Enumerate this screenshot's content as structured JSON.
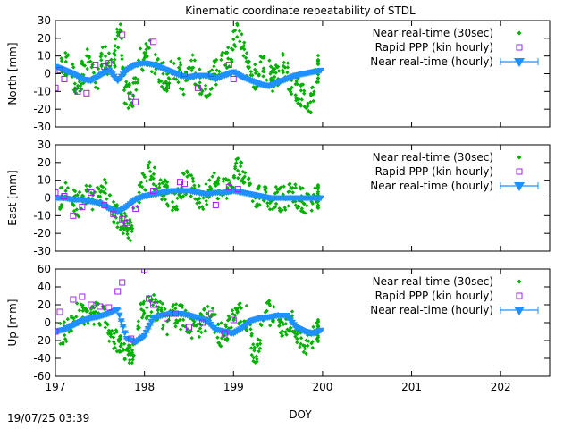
{
  "title": "Kinematic coordinate repeatability of STDL",
  "timestamp": "19/07/25 03:39",
  "colors": {
    "nrt_30sec": "#00b000",
    "rapid_ppp": "#a020f0",
    "nrt_hourly": "#1e90ff"
  },
  "chart_data": {
    "type": "scatter",
    "title": "Kinematic coordinate repeatability of STDL",
    "xlabel": "DOY",
    "xlim": [
      197,
      202.55
    ],
    "xticks": [
      197,
      198,
      199,
      200,
      201,
      202
    ],
    "grid": false,
    "legend_position": "top-right",
    "legend": [
      {
        "label": "Near real-time (30sec)",
        "marker": "diamond",
        "color": "#00b000"
      },
      {
        "label": "Rapid PPP (kin hourly)",
        "marker": "open-square",
        "color": "#a020f0"
      },
      {
        "label": "Near real-time (hourly)",
        "marker": "triangle-down-errorbar",
        "color": "#1e90ff"
      }
    ],
    "panels": [
      {
        "name": "north",
        "ylabel": "North [mm]",
        "ylim": [
          -30,
          30
        ],
        "yticks": [
          -30,
          -20,
          -10,
          0,
          10,
          20,
          30
        ],
        "series": [
          {
            "name": "Near real-time (30sec)",
            "color": "#00b000",
            "x": [
              197.05,
              197.15,
              197.25,
              197.35,
              197.45,
              197.55,
              197.65,
              197.72,
              197.78,
              197.85,
              197.95,
              198.05,
              198.15,
              198.25,
              198.35,
              198.45,
              198.55,
              198.65,
              198.75,
              198.85,
              198.95,
              199.05,
              199.15,
              199.25,
              199.35,
              199.45,
              199.55,
              199.65,
              199.75,
              199.85,
              199.95
            ],
            "y": [
              2,
              5,
              -8,
              8,
              -5,
              10,
              3,
              28,
              -10,
              -15,
              6,
              12,
              3,
              -4,
              5,
              -6,
              4,
              -8,
              -3,
              5,
              7,
              25,
              4,
              -2,
              6,
              -3,
              5,
              -5,
              -10,
              -18,
              3
            ],
            "spread": 8
          },
          {
            "name": "Rapid PPP (kin hourly)",
            "color": "#a020f0",
            "x": [
              197.0,
              197.05,
              197.1,
              197.25,
              197.35,
              197.45,
              197.55,
              197.6,
              197.75,
              197.85,
              197.9,
              198.1,
              198.25,
              198.45,
              198.6,
              198.75,
              198.95,
              199.0
            ],
            "y": [
              -8,
              2,
              -3,
              -10,
              -11,
              5,
              4,
              6,
              22,
              -13,
              -16,
              18,
              -7,
              0,
              -8,
              0,
              5,
              -3
            ]
          },
          {
            "name": "Near real-time (hourly)",
            "color": "#1e90ff",
            "x": [
              197.0,
              197.1,
              197.2,
              197.3,
              197.4,
              197.5,
              197.6,
              197.7,
              197.8,
              197.9,
              198.0,
              198.1,
              198.2,
              198.3,
              198.4,
              198.5,
              198.6,
              198.7,
              198.8,
              198.9,
              199.0,
              199.1,
              199.2,
              199.3,
              199.4,
              199.5,
              199.6,
              199.7,
              199.8,
              199.9,
              200.0
            ],
            "y": [
              4,
              2,
              0,
              -3,
              -4,
              -1,
              2,
              -4,
              2,
              5,
              6,
              5,
              3,
              1,
              -1,
              -2,
              -1,
              -1,
              -3,
              -1,
              1,
              -2,
              -4,
              -6,
              -7,
              -5,
              -3,
              -1,
              0,
              1,
              2
            ]
          }
        ]
      },
      {
        "name": "east",
        "ylabel": "East [mm]",
        "ylim": [
          -30,
          30
        ],
        "yticks": [
          -30,
          -20,
          -10,
          0,
          10,
          20,
          30
        ],
        "series": [
          {
            "name": "Near real-time (30sec)",
            "color": "#00b000",
            "x": [
              197.05,
              197.15,
              197.25,
              197.35,
              197.45,
              197.55,
              197.65,
              197.72,
              197.78,
              197.85,
              197.95,
              198.05,
              198.15,
              198.25,
              198.35,
              198.45,
              198.55,
              198.65,
              198.75,
              198.85,
              198.95,
              199.05,
              199.15,
              199.25,
              199.35,
              199.45,
              199.55,
              199.65,
              199.75,
              199.85,
              199.95
            ],
            "y": [
              0,
              4,
              -5,
              3,
              -2,
              6,
              -8,
              -12,
              -15,
              -18,
              5,
              15,
              8,
              3,
              -2,
              9,
              6,
              -3,
              10,
              5,
              7,
              18,
              8,
              2,
              1,
              0,
              -1,
              2,
              0,
              -3,
              1
            ],
            "spread": 7
          },
          {
            "name": "Rapid PPP (kin hourly)",
            "color": "#a020f0",
            "x": [
              197.0,
              197.1,
              197.2,
              197.3,
              197.4,
              197.55,
              197.65,
              197.75,
              197.8,
              197.9,
              198.1,
              198.4,
              198.45,
              198.8,
              198.95,
              199.05
            ],
            "y": [
              3,
              1,
              -10,
              -5,
              3,
              -4,
              -9,
              -12,
              -14,
              -6,
              4,
              9,
              8,
              -4,
              6,
              5
            ]
          },
          {
            "name": "Near real-time (hourly)",
            "color": "#1e90ff",
            "x": [
              197.0,
              197.1,
              197.2,
              197.3,
              197.4,
              197.5,
              197.6,
              197.7,
              197.8,
              197.9,
              198.0,
              198.1,
              198.2,
              198.3,
              198.4,
              198.5,
              198.6,
              198.7,
              198.8,
              198.9,
              199.0,
              199.1,
              199.2,
              199.3,
              199.4,
              199.5,
              199.6,
              199.7,
              199.8,
              199.9,
              200.0
            ],
            "y": [
              0,
              0,
              -1,
              -1,
              -2,
              -3,
              -6,
              -8,
              -5,
              -1,
              1,
              2,
              3,
              4,
              4,
              4,
              3,
              2,
              3,
              3,
              4,
              3,
              2,
              1,
              0,
              0,
              0,
              0,
              0,
              0,
              0
            ]
          }
        ]
      },
      {
        "name": "up",
        "ylabel": "Up [mm]",
        "ylim": [
          -60,
          60
        ],
        "yticks": [
          -60,
          -40,
          -20,
          0,
          20,
          40,
          60
        ],
        "series": [
          {
            "name": "Near real-time (30sec)",
            "color": "#00b000",
            "x": [
              197.05,
              197.15,
              197.25,
              197.35,
              197.45,
              197.55,
              197.65,
              197.72,
              197.78,
              197.85,
              197.95,
              198.05,
              198.15,
              198.25,
              198.35,
              198.45,
              198.55,
              198.65,
              198.75,
              198.85,
              198.95,
              199.05,
              199.15,
              199.25,
              199.35,
              199.45,
              199.55,
              199.65,
              199.75,
              199.85,
              199.95
            ],
            "y": [
              -15,
              -5,
              10,
              5,
              12,
              8,
              -20,
              -25,
              -30,
              -40,
              10,
              20,
              15,
              0,
              8,
              5,
              -10,
              0,
              12,
              -15,
              -5,
              10,
              5,
              -48,
              15,
              8,
              -10,
              5,
              -20,
              -25,
              -10
            ],
            "spread": 14
          },
          {
            "name": "Rapid PPP (kin hourly)",
            "color": "#a020f0",
            "x": [
              197.0,
              197.05,
              197.2,
              197.3,
              197.4,
              197.5,
              197.6,
              197.7,
              197.75,
              197.85,
              198.0,
              198.05,
              198.1,
              198.25,
              198.35,
              198.5,
              198.65,
              198.75,
              198.9,
              199.0
            ],
            "y": [
              -10,
              12,
              26,
              29,
              20,
              18,
              17,
              35,
              45,
              -18,
              59,
              27,
              20,
              5,
              10,
              -5,
              0,
              10,
              -12,
              3
            ]
          },
          {
            "name": "Near real-time (hourly)",
            "color": "#1e90ff",
            "x": [
              197.0,
              197.1,
              197.2,
              197.3,
              197.4,
              197.5,
              197.6,
              197.7,
              197.8,
              197.9,
              198.0,
              198.1,
              198.2,
              198.3,
              198.4,
              198.5,
              198.6,
              198.7,
              198.8,
              198.9,
              199.0,
              199.1,
              199.2,
              199.3,
              199.4,
              199.5,
              199.6,
              199.7,
              199.8,
              199.9,
              200.0
            ],
            "y": [
              -10,
              -8,
              -3,
              2,
              5,
              7,
              10,
              15,
              -18,
              -22,
              -15,
              5,
              8,
              10,
              10,
              8,
              5,
              2,
              -8,
              -10,
              -12,
              -6,
              2,
              5,
              6,
              8,
              8,
              -5,
              -10,
              -12,
              -8
            ]
          }
        ]
      }
    ]
  }
}
